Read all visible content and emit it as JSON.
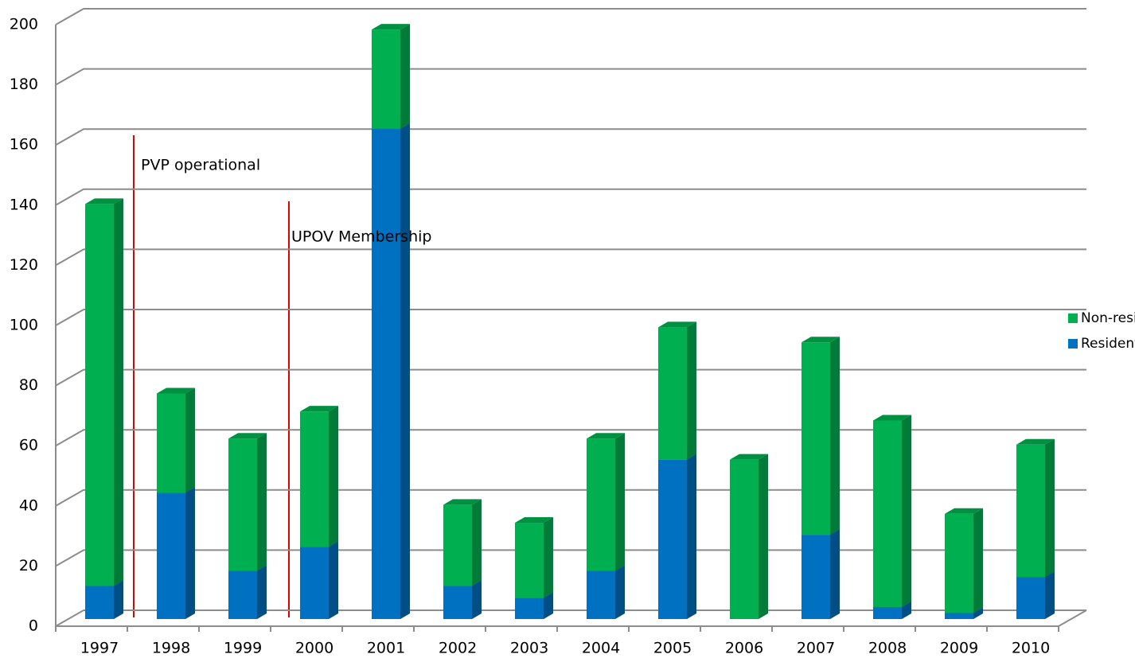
{
  "chart_data": {
    "type": "bar",
    "stacked": true,
    "categories": [
      "1997",
      "1998",
      "1999",
      "2000",
      "2001",
      "2002",
      "2003",
      "2004",
      "2005",
      "2006",
      "2007",
      "2008",
      "2009",
      "2010"
    ],
    "series": [
      {
        "name": "Residents",
        "color": "#0070c0",
        "values": [
          11,
          42,
          16,
          24,
          163,
          11,
          7,
          16,
          53,
          0,
          28,
          4,
          2,
          14
        ]
      },
      {
        "name": "Non-residents",
        "color": "#00b050",
        "values": [
          127,
          33,
          44,
          45,
          33,
          27,
          25,
          44,
          44,
          53,
          64,
          62,
          33,
          44
        ]
      }
    ],
    "ylim": [
      0,
      200
    ],
    "yticks": [
      0,
      20,
      40,
      60,
      80,
      100,
      120,
      140,
      160,
      180,
      200
    ],
    "grid": true,
    "legend": "right",
    "annotations": [
      {
        "text": "PVP operational"
      },
      {
        "text": "UPOV Membership"
      }
    ]
  }
}
